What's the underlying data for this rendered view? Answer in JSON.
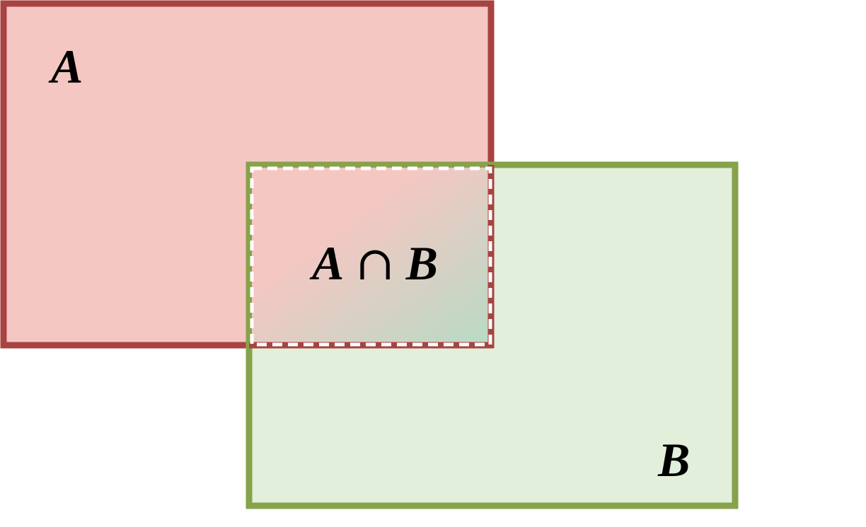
{
  "labels": {
    "set_a": "A",
    "set_b": "B",
    "intersection": {
      "left": "A",
      "operator": "∩",
      "right": "B"
    }
  },
  "colors": {
    "set_a_fill": "#f4c7c3",
    "set_a_border": "#a84342",
    "set_b_fill": "#e2efda",
    "set_b_border": "#86a34b",
    "intersection_gradient_start": "#f4c7c3",
    "intersection_gradient_end": "#b8dbc4",
    "intersection_dash": "#ffffff"
  }
}
